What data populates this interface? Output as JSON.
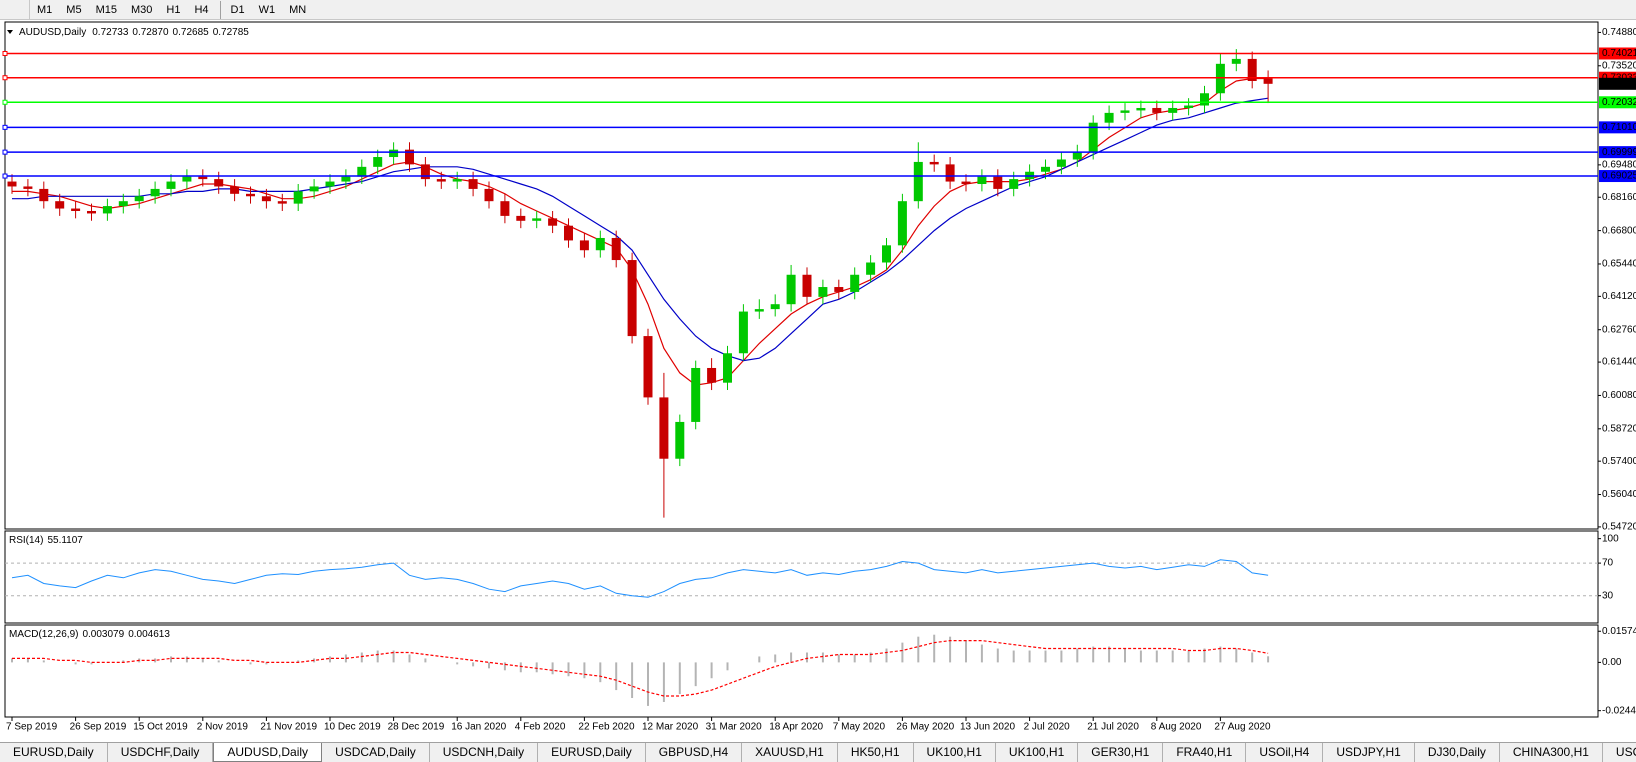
{
  "toolbar": [
    "M1",
    "M5",
    "M15",
    "M30",
    "H1",
    "H4",
    "D1",
    "W1",
    "MN"
  ],
  "tabs": [
    "EURUSD,Daily",
    "USDCHF,Daily",
    "AUDUSD,Daily",
    "USDCAD,Daily",
    "USDCNH,Daily",
    "EURUSD,Daily",
    "GBPUSD,H4",
    "XAUUSD,H1",
    "HK50,H1",
    "UK100,H1",
    "UK100,H1",
    "GER30,H1",
    "FRA40,H1",
    "USOil,H4",
    "USDJPY,H1",
    "DJ30,Daily",
    "CHINA300,H1",
    "USOil,H1"
  ],
  "active_tab": 2,
  "chart_data": [
    {
      "type": "candlestick",
      "symbol": "AUDUSD,Daily",
      "header_values": [
        "0.72733",
        "0.72870",
        "0.72685",
        "0.72785"
      ],
      "categories": [
        "7 Sep 2019",
        null,
        null,
        null,
        "26 Sep 2019",
        null,
        null,
        null,
        "15 Oct 2019",
        null,
        null,
        null,
        "2 Nov 2019",
        null,
        null,
        null,
        "21 Nov 2019",
        null,
        null,
        null,
        "10 Dec 2019",
        null,
        null,
        null,
        "28 Dec 2019",
        null,
        null,
        null,
        "16 Jan 2020",
        null,
        null,
        null,
        "4 Feb 2020",
        null,
        null,
        null,
        "22 Feb 2020",
        null,
        null,
        null,
        "12 Mar 2020",
        null,
        null,
        null,
        "31 Mar 2020",
        null,
        null,
        null,
        "18 Apr 2020",
        null,
        null,
        null,
        "7 May 2020",
        null,
        null,
        null,
        "26 May 2020",
        null,
        null,
        null,
        "13 Jun 2020",
        null,
        null,
        null,
        "2 Jul 2020",
        null,
        null,
        null,
        "21 Jul 2020",
        null,
        null,
        null,
        "8 Aug 2020",
        null,
        null,
        null,
        "27 Aug 2020",
        null,
        null,
        null
      ],
      "open": [
        0.688,
        0.686,
        0.685,
        0.68,
        0.677,
        0.676,
        0.675,
        0.678,
        0.68,
        0.682,
        0.685,
        0.688,
        0.69,
        0.689,
        0.686,
        0.683,
        0.682,
        0.68,
        0.679,
        0.684,
        0.686,
        0.688,
        0.69,
        0.694,
        0.698,
        0.701,
        0.695,
        0.689,
        0.688,
        0.689,
        0.685,
        0.68,
        0.674,
        0.672,
        0.673,
        0.67,
        0.664,
        0.66,
        0.665,
        0.656,
        0.625,
        0.6,
        0.575,
        0.59,
        0.612,
        0.606,
        0.618,
        0.635,
        0.636,
        0.638,
        0.65,
        0.641,
        0.645,
        0.643,
        0.65,
        0.655,
        0.662,
        0.68,
        0.696,
        0.695,
        0.688,
        0.687,
        0.69,
        0.685,
        0.689,
        0.692,
        0.694,
        0.697,
        0.7,
        0.712,
        0.716,
        0.717,
        0.718,
        0.716,
        0.718,
        0.719,
        0.724,
        0.736,
        0.738,
        0.73
      ],
      "high": [
        0.691,
        0.689,
        0.688,
        0.683,
        0.68,
        0.679,
        0.681,
        0.683,
        0.685,
        0.688,
        0.691,
        0.693,
        0.693,
        0.692,
        0.689,
        0.686,
        0.685,
        0.683,
        0.687,
        0.689,
        0.691,
        0.693,
        0.697,
        0.701,
        0.704,
        0.704,
        0.698,
        0.692,
        0.692,
        0.692,
        0.688,
        0.683,
        0.677,
        0.676,
        0.676,
        0.673,
        0.667,
        0.668,
        0.668,
        0.659,
        0.628,
        0.61,
        0.593,
        0.615,
        0.616,
        0.621,
        0.638,
        0.64,
        0.642,
        0.654,
        0.653,
        0.648,
        0.648,
        0.653,
        0.658,
        0.665,
        0.683,
        0.704,
        0.699,
        0.698,
        0.691,
        0.693,
        0.693,
        0.692,
        0.695,
        0.697,
        0.7,
        0.703,
        0.715,
        0.719,
        0.72,
        0.721,
        0.721,
        0.721,
        0.722,
        0.727,
        0.74,
        0.742,
        0.741,
        0.7333
      ],
      "low": [
        0.683,
        0.682,
        0.677,
        0.674,
        0.673,
        0.672,
        0.672,
        0.675,
        0.677,
        0.679,
        0.682,
        0.685,
        0.686,
        0.683,
        0.68,
        0.679,
        0.677,
        0.676,
        0.676,
        0.681,
        0.683,
        0.685,
        0.687,
        0.691,
        0.695,
        0.692,
        0.686,
        0.685,
        0.685,
        0.682,
        0.677,
        0.671,
        0.669,
        0.669,
        0.667,
        0.661,
        0.657,
        0.657,
        0.653,
        0.622,
        0.597,
        0.551,
        0.572,
        0.587,
        0.603,
        0.603,
        0.615,
        0.632,
        0.633,
        0.635,
        0.638,
        0.638,
        0.64,
        0.64,
        0.647,
        0.652,
        0.659,
        0.677,
        0.692,
        0.685,
        0.684,
        0.684,
        0.682,
        0.682,
        0.686,
        0.689,
        0.691,
        0.694,
        0.697,
        0.709,
        0.713,
        0.714,
        0.713,
        0.713,
        0.715,
        0.716,
        0.721,
        0.733,
        0.726,
        0.72
      ],
      "close": [
        0.686,
        0.685,
        0.68,
        0.677,
        0.676,
        0.675,
        0.678,
        0.68,
        0.682,
        0.685,
        0.688,
        0.69,
        0.689,
        0.686,
        0.683,
        0.682,
        0.68,
        0.679,
        0.684,
        0.686,
        0.688,
        0.69,
        0.694,
        0.698,
        0.701,
        0.695,
        0.689,
        0.688,
        0.689,
        0.685,
        0.68,
        0.674,
        0.672,
        0.673,
        0.67,
        0.664,
        0.66,
        0.665,
        0.656,
        0.625,
        0.6,
        0.575,
        0.59,
        0.612,
        0.606,
        0.618,
        0.635,
        0.636,
        0.638,
        0.65,
        0.641,
        0.645,
        0.643,
        0.65,
        0.655,
        0.662,
        0.68,
        0.696,
        0.695,
        0.688,
        0.687,
        0.69,
        0.685,
        0.689,
        0.692,
        0.694,
        0.697,
        0.7,
        0.712,
        0.716,
        0.717,
        0.718,
        0.716,
        0.718,
        0.719,
        0.724,
        0.736,
        0.738,
        0.729,
        0.72785
      ],
      "up_color": "#00c800",
      "down_color": "#c80000",
      "overlays": [
        {
          "color": "#e00000",
          "values": [
            0.684,
            0.684,
            0.683,
            0.682,
            0.68,
            0.678,
            0.677,
            0.678,
            0.679,
            0.681,
            0.683,
            0.685,
            0.687,
            0.687,
            0.686,
            0.685,
            0.683,
            0.681,
            0.681,
            0.682,
            0.684,
            0.686,
            0.689,
            0.692,
            0.695,
            0.696,
            0.694,
            0.691,
            0.689,
            0.688,
            0.686,
            0.683,
            0.679,
            0.676,
            0.673,
            0.67,
            0.667,
            0.664,
            0.661,
            0.652,
            0.638,
            0.62,
            0.61,
            0.605,
            0.606,
            0.608,
            0.615,
            0.622,
            0.628,
            0.634,
            0.638,
            0.641,
            0.643,
            0.645,
            0.648,
            0.652,
            0.66,
            0.67,
            0.678,
            0.684,
            0.687,
            0.688,
            0.688,
            0.688,
            0.689,
            0.691,
            0.693,
            0.696,
            0.701,
            0.706,
            0.71,
            0.714,
            0.716,
            0.717,
            0.718,
            0.72,
            0.725,
            0.729,
            0.73,
            0.73
          ]
        },
        {
          "color": "#0000c8",
          "values": [
            0.681,
            0.681,
            0.682,
            0.682,
            0.682,
            0.682,
            0.682,
            0.682,
            0.682,
            0.683,
            0.683,
            0.684,
            0.684,
            0.685,
            0.685,
            0.684,
            0.684,
            0.684,
            0.684,
            0.685,
            0.686,
            0.687,
            0.688,
            0.69,
            0.692,
            0.693,
            0.694,
            0.694,
            0.694,
            0.693,
            0.691,
            0.689,
            0.687,
            0.685,
            0.682,
            0.678,
            0.674,
            0.67,
            0.666,
            0.66,
            0.65,
            0.64,
            0.632,
            0.625,
            0.62,
            0.617,
            0.615,
            0.616,
            0.62,
            0.626,
            0.632,
            0.638,
            0.64,
            0.643,
            0.647,
            0.651,
            0.656,
            0.662,
            0.668,
            0.673,
            0.677,
            0.68,
            0.683,
            0.686,
            0.688,
            0.69,
            0.693,
            0.696,
            0.699,
            0.702,
            0.705,
            0.708,
            0.711,
            0.713,
            0.714,
            0.716,
            0.718,
            0.72,
            0.721,
            0.722
          ]
        }
      ],
      "levels": [
        0.74021,
        0.73033,
        0.72032,
        {
          "value": 0.7101,
          "label": "0.71010"
        },
        0.69999,
        0.69025
      ],
      "level_colors": [
        "#ff0000",
        "#ff0000",
        "#00ff00",
        "#0000ff",
        "#0000ff",
        "#0000ff"
      ],
      "ylim": [
        0.54635,
        0.75305
      ],
      "yticks": [
        {
          "value": 0.7488,
          "label": "0.74880"
        },
        {
          "value": 0.7352,
          "label": "0.73520"
        },
        {
          "value": 0.6948,
          "label": "0.69480"
        },
        {
          "value": 0.6816,
          "label": "0.68160"
        },
        {
          "value": 0.668,
          "label": "0.66800"
        },
        {
          "value": 0.6544,
          "label": "0.65440"
        },
        {
          "value": 0.6412,
          "label": "0.64120"
        },
        {
          "value": 0.6276,
          "label": "0.62760"
        },
        {
          "value": 0.6144,
          "label": "0.61440"
        },
        {
          "value": 0.6008,
          "label": "0.60080"
        },
        {
          "value": 0.5872,
          "label": "0.58720"
        },
        {
          "value": 0.574,
          "label": "0.57400"
        },
        {
          "value": 0.5604,
          "label": "0.56040"
        },
        {
          "value": 0.5472,
          "label": "0.54720"
        }
      ]
    },
    {
      "type": "line",
      "title": "RSI(14)",
      "color": "#1e90ff",
      "values": [
        52,
        55,
        45,
        42,
        40,
        48,
        55,
        52,
        58,
        62,
        60,
        55,
        50,
        48,
        45,
        50,
        55,
        57,
        56,
        60,
        62,
        63,
        65,
        68,
        70,
        55,
        50,
        52,
        50,
        45,
        38,
        35,
        42,
        45,
        48,
        45,
        38,
        42,
        33,
        30,
        28,
        35,
        45,
        50,
        52,
        58,
        62,
        60,
        58,
        62,
        55,
        58,
        56,
        60,
        62,
        66,
        72,
        70,
        62,
        60,
        58,
        62,
        58,
        60,
        62,
        64,
        66,
        68,
        70,
        66,
        64,
        66,
        62,
        65,
        68,
        66,
        74,
        72,
        58,
        55.1107
      ],
      "ylim": [
        -3.5,
        109.4
      ],
      "yticks": [
        100,
        70,
        30
      ],
      "level_lines": [
        70,
        30
      ]
    },
    {
      "type": "macd",
      "title": "MACD(12,26,9)",
      "values": [
        0.002,
        0.002,
        0.001,
        0.0,
        -0.001,
        -0.001,
        0.0,
        0.001,
        0.002,
        0.002,
        0.003,
        0.003,
        0.002,
        0.001,
        0.0,
        -0.001,
        -0.001,
        0.0,
        0.001,
        0.002,
        0.003,
        0.004,
        0.005,
        0.006,
        0.006,
        0.004,
        0.002,
        0.0,
        -0.001,
        -0.002,
        -0.003,
        -0.004,
        -0.005,
        -0.005,
        -0.006,
        -0.007,
        -0.008,
        -0.01,
        -0.014,
        -0.018,
        -0.022,
        -0.02,
        -0.016,
        -0.012,
        -0.008,
        -0.004,
        0.0,
        0.003,
        0.004,
        0.005,
        0.005,
        0.005,
        0.004,
        0.004,
        0.005,
        0.007,
        0.01,
        0.013,
        0.014,
        0.013,
        0.011,
        0.009,
        0.007,
        0.006,
        0.006,
        0.006,
        0.006,
        0.007,
        0.008,
        0.008,
        0.007,
        0.006,
        0.006,
        0.006,
        0.006,
        0.007,
        0.008,
        0.007,
        0.005,
        0.003079
      ],
      "signal": [
        0.002,
        0.002,
        0.002,
        0.001,
        0.001,
        0.0,
        0.0,
        0.0,
        0.001,
        0.001,
        0.002,
        0.002,
        0.002,
        0.002,
        0.001,
        0.001,
        0.0,
        0.0,
        0.0,
        0.001,
        0.002,
        0.002,
        0.003,
        0.004,
        0.005,
        0.005,
        0.004,
        0.003,
        0.002,
        0.001,
        0.0,
        -0.001,
        -0.002,
        -0.003,
        -0.004,
        -0.005,
        -0.006,
        -0.007,
        -0.009,
        -0.012,
        -0.015,
        -0.017,
        -0.017,
        -0.016,
        -0.014,
        -0.011,
        -0.008,
        -0.005,
        -0.002,
        0.0,
        0.002,
        0.003,
        0.004,
        0.004,
        0.004,
        0.005,
        0.006,
        0.008,
        0.01,
        0.011,
        0.011,
        0.011,
        0.01,
        0.009,
        0.008,
        0.007,
        0.007,
        0.007,
        0.007,
        0.007,
        0.007,
        0.007,
        0.007,
        0.007,
        0.006,
        0.006,
        0.007,
        0.007,
        0.006,
        0.004613
      ],
      "bar_color": "#b4b4b4",
      "signal_color": "#ff0000",
      "ylim": [
        -0.0276,
        0.0189
      ],
      "yticks": [
        0.01574,
        {
          "value": 0,
          "label": "0.00"
        },
        -0.02441
      ]
    }
  ]
}
